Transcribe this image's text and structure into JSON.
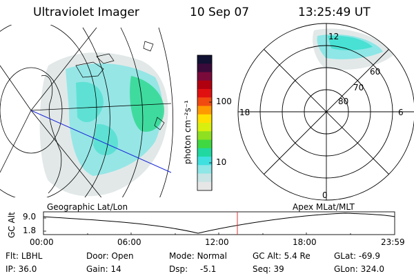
{
  "header": {
    "instrument": "Ultraviolet Imager",
    "date": "10 Sep 07",
    "time": "13:25:49 UT"
  },
  "colorbar": {
    "unit_label": "photon cm⁻²s⁻¹",
    "ticks": [
      "100",
      "10"
    ],
    "colors": [
      "#111133",
      "#3a0a3a",
      "#7a0a3a",
      "#b00010",
      "#e01010",
      "#f04a10",
      "#ff9900",
      "#ffe000",
      "#d8ef10",
      "#8fe020",
      "#40d840",
      "#20d8a0",
      "#40e0e0",
      "#8ee6e6",
      "#c8e4e4",
      "#e6e6e6"
    ]
  },
  "geo_panel": {
    "label": "Geographic Lat/Lon"
  },
  "polar_panel": {
    "label": "Apex MLat/MLT",
    "mlt_labels": {
      "top": "12",
      "right": "6",
      "left": "18",
      "bottom": "0"
    },
    "lat_labels": [
      "60",
      "70",
      "80"
    ]
  },
  "altitude_plot": {
    "ylabel": "GC Alt",
    "yticks": [
      "9.0",
      "1.8"
    ],
    "xticks": [
      "00:00",
      "06:00",
      "12:00",
      "18:00",
      "23:59"
    ]
  },
  "status": {
    "flt": {
      "label": "Flt:",
      "value": "LBHL"
    },
    "ip": {
      "label": "IP:",
      "value": "36.0"
    },
    "door": {
      "label": "Door:",
      "value": "Open"
    },
    "gain": {
      "label": "Gain:",
      "value": "14"
    },
    "mode": {
      "label": "Mode:",
      "value": "Normal"
    },
    "dsp": {
      "label": "Dsp:",
      "value": "-5.1"
    },
    "gcalt": {
      "label": "GC Alt:",
      "value": "5.4 Re"
    },
    "seq": {
      "label": "Seq:",
      "value": "39"
    },
    "glat": {
      "label": "GLat:",
      "value": "-69.9"
    },
    "glon": {
      "label": "GLon:",
      "value": "324.0"
    }
  }
}
